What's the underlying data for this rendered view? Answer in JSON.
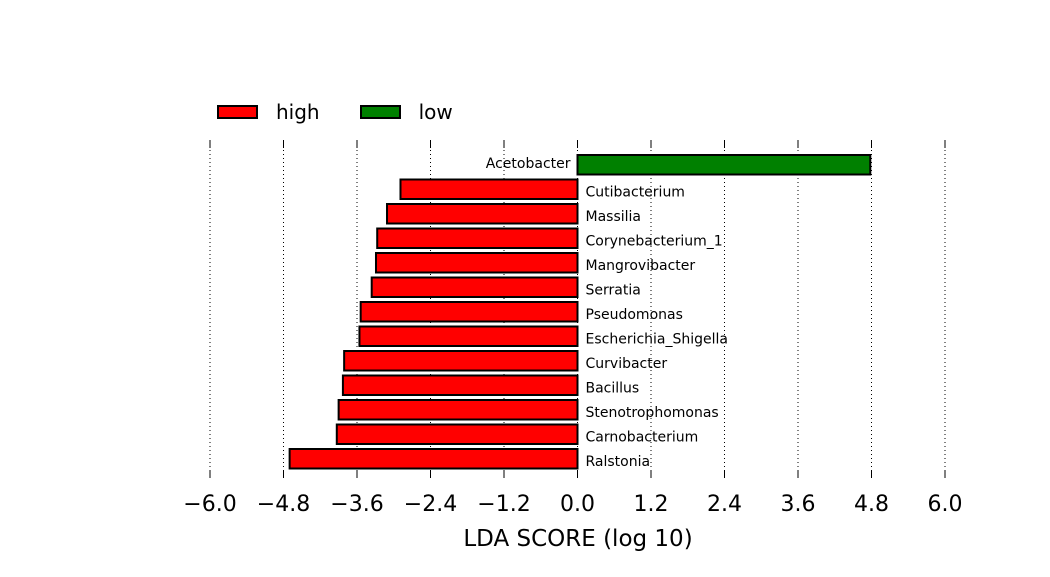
{
  "chart_data": {
    "type": "bar",
    "orientation": "horizontal",
    "xlabel": "LDA SCORE (log 10)",
    "xlim": [
      -6.0,
      6.0
    ],
    "xticks": [
      "−6.0",
      "−4.8",
      "−3.6",
      "−2.4",
      "−1.2",
      "0.0",
      "1.2",
      "2.4",
      "3.6",
      "4.8",
      "6.0"
    ],
    "xtick_values": [
      -6.0,
      -4.8,
      -3.6,
      -2.4,
      -1.2,
      0.0,
      1.2,
      2.4,
      3.6,
      4.8,
      6.0
    ],
    "grid": "vertical dotted",
    "legend_placement": "top-left",
    "series": [
      {
        "name": "high",
        "color": "#ff0000"
      },
      {
        "name": "low",
        "color": "#008000"
      }
    ],
    "categories": [
      "Acetobacter",
      "Cutibacterium",
      "Massilia",
      "Corynebacterium_1",
      "Mangrovibacter",
      "Serratia",
      "Pseudomonas",
      "Escherichia_Shigella",
      "Curvibacter",
      "Bacillus",
      "Stenotrophomonas",
      "Carnobacterium",
      "Ralstonia"
    ],
    "values": [
      4.78,
      -2.89,
      -3.11,
      -3.27,
      -3.29,
      -3.36,
      -3.54,
      -3.56,
      -3.81,
      -3.83,
      -3.9,
      -3.93,
      -4.7
    ],
    "groups": [
      "low",
      "high",
      "high",
      "high",
      "high",
      "high",
      "high",
      "high",
      "high",
      "high",
      "high",
      "high",
      "high"
    ]
  }
}
